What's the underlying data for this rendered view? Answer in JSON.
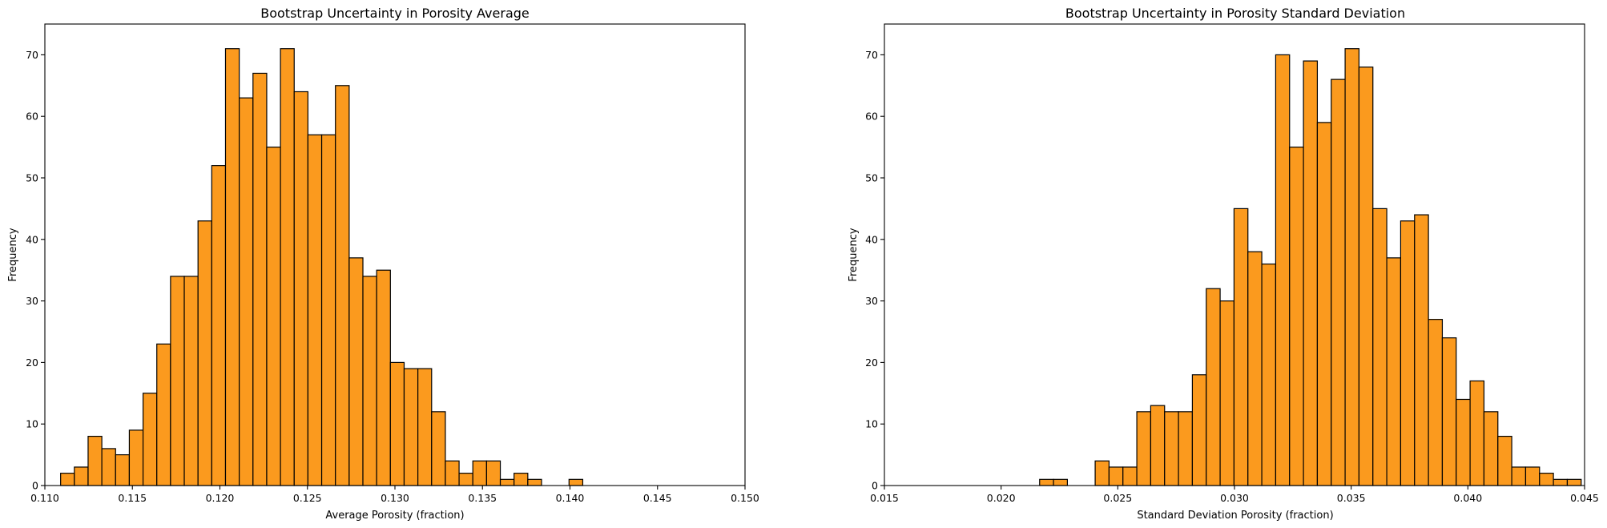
{
  "chart_data": [
    {
      "type": "bar",
      "title": "Bootstrap Uncertainty in Porosity Average",
      "xlabel": "Average Porosity (fraction)",
      "ylabel": "Frequency",
      "xlim": [
        0.11,
        0.15
      ],
      "ylim": [
        0,
        75
      ],
      "xticks": [
        "0.110",
        "0.115",
        "0.120",
        "0.125",
        "0.130",
        "0.135",
        "0.140",
        "0.145",
        "0.150"
      ],
      "yticks": [
        "0",
        "10",
        "20",
        "30",
        "40",
        "50",
        "60",
        "70"
      ],
      "bin_start": 0.1109,
      "bin_width": 0.000785,
      "values": [
        2,
        3,
        8,
        6,
        5,
        9,
        15,
        23,
        34,
        34,
        43,
        52,
        71,
        63,
        67,
        55,
        71,
        64,
        57,
        57,
        65,
        37,
        34,
        35,
        20,
        19,
        19,
        12,
        4,
        2,
        4,
        4,
        1,
        2,
        1,
        0,
        0,
        1
      ],
      "bar_color": "#fb9a1e"
    },
    {
      "type": "bar",
      "title": "Bootstrap Uncertainty in Porosity Standard Deviation",
      "xlabel": "Standard Deviation Porosity (fraction)",
      "ylabel": "Frequency",
      "xlim": [
        0.015,
        0.045
      ],
      "ylim": [
        0,
        75
      ],
      "xticks": [
        "0.015",
        "0.020",
        "0.025",
        "0.030",
        "0.035",
        "0.040",
        "0.045"
      ],
      "yticks": [
        "0",
        "10",
        "20",
        "30",
        "40",
        "50",
        "60",
        "70"
      ],
      "bin_start": 0.02165,
      "bin_width": 0.000595,
      "values": [
        1,
        1,
        0,
        0,
        4,
        3,
        3,
        12,
        13,
        12,
        12,
        18,
        32,
        30,
        45,
        38,
        36,
        70,
        55,
        69,
        59,
        66,
        71,
        68,
        45,
        37,
        43,
        44,
        27,
        24,
        14,
        17,
        12,
        8,
        3,
        3,
        2,
        1,
        1
      ],
      "bar_color": "#fb9a1e"
    }
  ]
}
